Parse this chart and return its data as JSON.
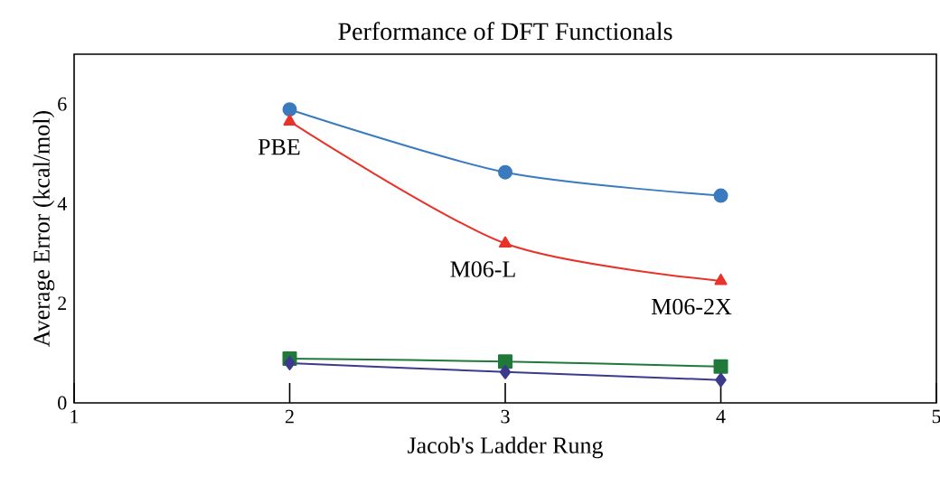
{
  "chart_data": {
    "type": "line",
    "title": "Performance of DFT Functionals",
    "xlabel": "Jacob's Ladder Rung",
    "ylabel": "Average Error (kcal/mol)",
    "x": [
      2,
      3,
      4
    ],
    "series": [
      {
        "color": "#3a7abf",
        "marker": "circle",
        "values": [
          5.89,
          4.63,
          4.16
        ]
      },
      {
        "color": "#e8322a",
        "marker": "triangle",
        "values": [
          5.65,
          3.2,
          2.45
        ]
      },
      {
        "color": "#1f7a3a",
        "marker": "square",
        "values": [
          0.89,
          0.83,
          0.73
        ]
      },
      {
        "color": "#3b3a8c",
        "marker": "diamond",
        "values": [
          0.8,
          0.62,
          0.46
        ]
      }
    ],
    "annotations": [
      {
        "text": "PBE",
        "x": 2,
        "y": 5.65
      },
      {
        "text": "M06-L",
        "x": 3,
        "y": 3.2
      },
      {
        "text": "M06-2X",
        "x": 4,
        "y": 2.45
      }
    ],
    "xlim": [
      1,
      5
    ],
    "ylim": [
      0,
      7
    ],
    "xticks": [
      1,
      2,
      3,
      4,
      5
    ],
    "yticks": [
      0,
      2,
      4,
      6
    ],
    "grid": false,
    "line_style": "solid"
  }
}
